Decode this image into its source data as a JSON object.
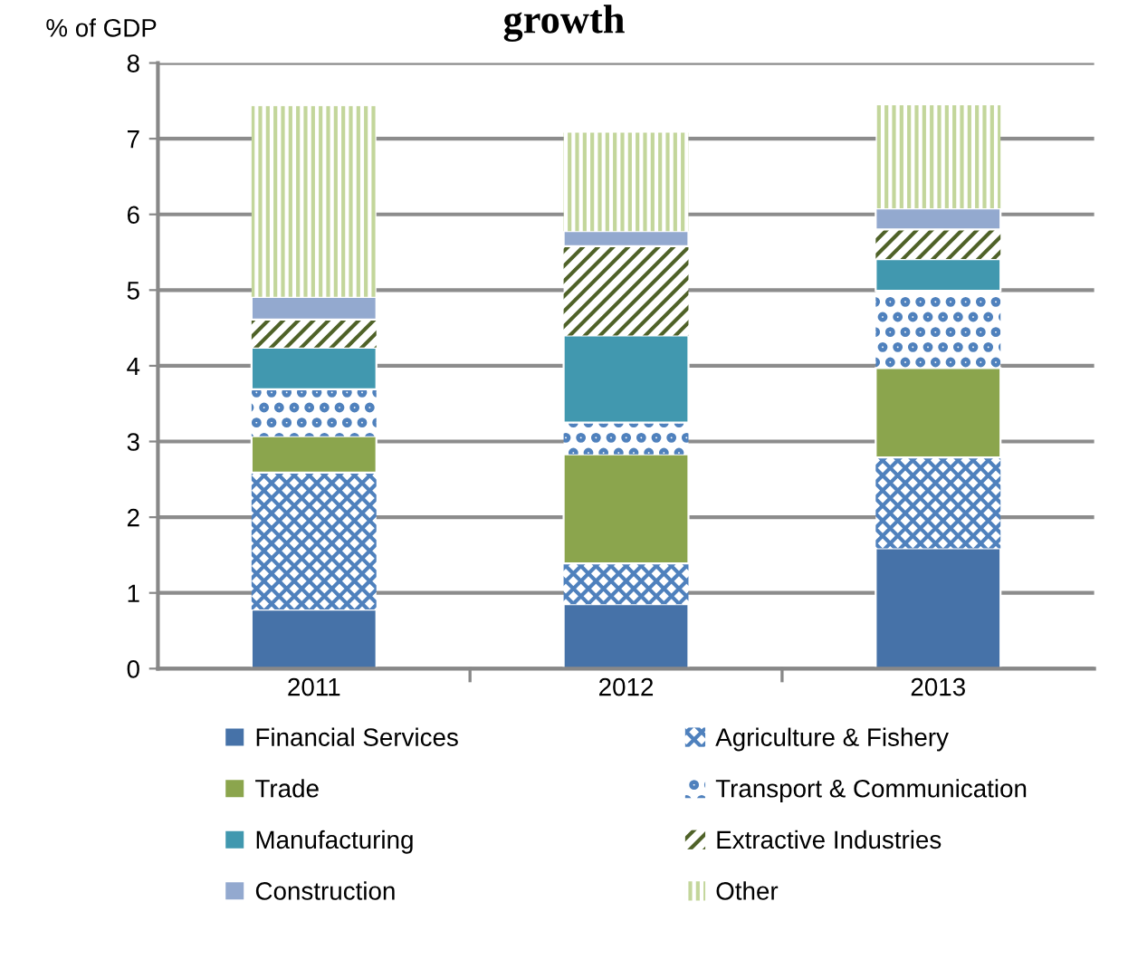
{
  "chart_data": {
    "type": "bar",
    "stacked": true,
    "title": "growth",
    "ylabel": "% of GDP",
    "categories": [
      "2011",
      "2012",
      "2013"
    ],
    "series": [
      {
        "name": "Financial Services",
        "color": "#4672a8",
        "values": [
          0.78,
          0.85,
          1.59
        ]
      },
      {
        "name": "Agriculture & Fishery",
        "color": "#4f81bd",
        "values": [
          1.81,
          0.54,
          1.2
        ]
      },
      {
        "name": "Trade",
        "color": "#8ba54d",
        "values": [
          0.48,
          1.44,
          1.18
        ]
      },
      {
        "name": "Transport & Communication",
        "color": "#4f81bd",
        "values": [
          0.62,
          0.42,
          1.02
        ]
      },
      {
        "name": "Manufacturing",
        "color": "#4198af",
        "values": [
          0.55,
          1.15,
          0.42
        ]
      },
      {
        "name": "Extractive Industries",
        "color": "#4f6228",
        "values": [
          0.37,
          1.18,
          0.39
        ]
      },
      {
        "name": "Construction",
        "color": "#93a9cf",
        "values": [
          0.3,
          0.2,
          0.28
        ]
      },
      {
        "name": "Other",
        "color": "#c3d69b",
        "values": [
          2.52,
          1.3,
          1.36
        ]
      }
    ],
    "ylim": [
      0,
      8
    ],
    "yticks": [
      0,
      1,
      2,
      3,
      4,
      5,
      6,
      7,
      8
    ],
    "grid": "y",
    "legend": "bottom"
  }
}
